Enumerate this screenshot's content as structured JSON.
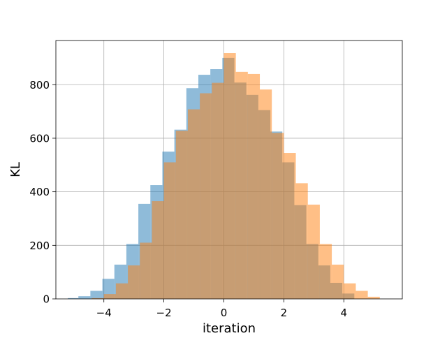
{
  "chart_data": {
    "type": "bar",
    "title": "",
    "xlabel": "iteration",
    "ylabel": "KL",
    "xlim": [
      -5.6,
      5.95
    ],
    "ylim": [
      0,
      965
    ],
    "grid": true,
    "xticks": [
      {
        "value": -4,
        "label": "−4"
      },
      {
        "value": -2,
        "label": "−2"
      },
      {
        "value": 0,
        "label": "0"
      },
      {
        "value": 2,
        "label": "2"
      },
      {
        "value": 4,
        "label": "4"
      }
    ],
    "yticks": [
      {
        "value": 0,
        "label": "0"
      },
      {
        "value": 200,
        "label": "200"
      },
      {
        "value": 400,
        "label": "400"
      },
      {
        "value": 600,
        "label": "600"
      },
      {
        "value": 800,
        "label": "800"
      }
    ],
    "series": [
      {
        "color": "#1f77b4",
        "opacity": 0.5,
        "bins": [
          [
            -5.6,
            -4.45,
            0
          ],
          [
            -5.2,
            -4.85,
            3
          ],
          [
            -4.85,
            -4.45,
            10
          ],
          [
            -4.45,
            -4.05,
            30
          ],
          [
            -4.05,
            -3.65,
            75
          ],
          [
            -3.65,
            -3.25,
            128
          ],
          [
            -3.25,
            -2.85,
            205
          ],
          [
            -2.85,
            -2.45,
            355
          ],
          [
            -2.45,
            -2.05,
            425
          ],
          [
            -2.05,
            -1.65,
            550
          ],
          [
            -1.65,
            -1.25,
            632
          ],
          [
            -1.25,
            -0.85,
            787
          ],
          [
            -0.85,
            -0.45,
            837
          ],
          [
            -0.45,
            -0.05,
            858
          ],
          [
            -0.05,
            0.35,
            900
          ],
          [
            0.35,
            0.75,
            808
          ],
          [
            0.75,
            1.15,
            762
          ],
          [
            1.15,
            1.55,
            705
          ],
          [
            1.55,
            1.95,
            625
          ],
          [
            1.95,
            2.35,
            510
          ],
          [
            2.35,
            2.75,
            350
          ],
          [
            2.75,
            3.15,
            205
          ],
          [
            3.15,
            3.55,
            125
          ],
          [
            3.55,
            3.95,
            60
          ],
          [
            3.95,
            4.35,
            20
          ]
        ]
      },
      {
        "color": "#ff7f0e",
        "opacity": 0.5,
        "bins": [
          [
            -4.4,
            -4.0,
            3
          ],
          [
            -4.0,
            -3.6,
            18
          ],
          [
            -3.6,
            -3.2,
            58
          ],
          [
            -3.2,
            -2.8,
            125
          ],
          [
            -2.8,
            -2.4,
            210
          ],
          [
            -2.4,
            -2.0,
            365
          ],
          [
            -2.0,
            -1.6,
            510
          ],
          [
            -1.6,
            -1.2,
            628
          ],
          [
            -1.2,
            -0.8,
            708
          ],
          [
            -0.8,
            -0.4,
            768
          ],
          [
            -0.4,
            0.0,
            807
          ],
          [
            0.0,
            0.4,
            918
          ],
          [
            0.4,
            0.8,
            848
          ],
          [
            0.8,
            1.2,
            840
          ],
          [
            1.2,
            1.6,
            782
          ],
          [
            1.6,
            2.0,
            620
          ],
          [
            2.0,
            2.4,
            545
          ],
          [
            2.4,
            2.8,
            432
          ],
          [
            2.8,
            3.2,
            352
          ],
          [
            3.2,
            3.6,
            205
          ],
          [
            3.6,
            4.0,
            128
          ],
          [
            4.0,
            4.4,
            58
          ],
          [
            4.4,
            4.8,
            30
          ],
          [
            4.8,
            5.2,
            8
          ]
        ]
      }
    ]
  }
}
